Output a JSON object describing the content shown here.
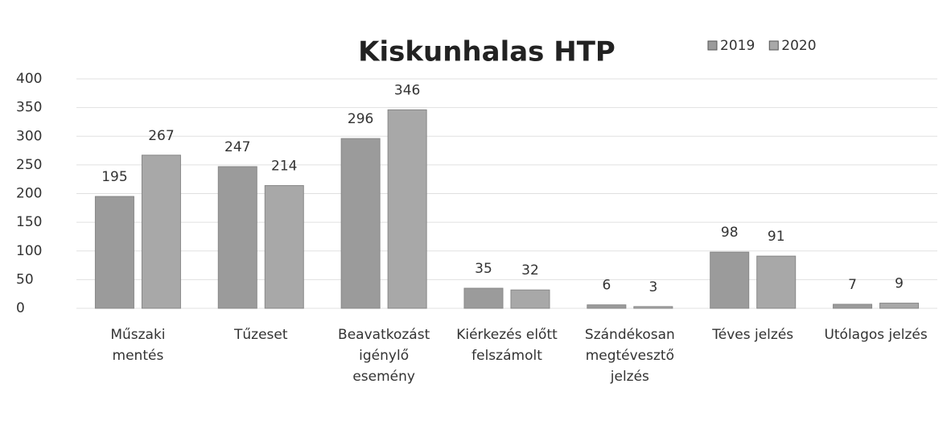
{
  "chart_data": {
    "type": "bar",
    "title": "Kiskunhalas HTP",
    "categories": [
      "Műszaki\nmentés",
      "Tűzeset",
      "Beavatkozást\nigénylő\nesemény",
      "Kiérkezés előtt\nfelszámolt",
      "Szándékosan\nmegtévesztő\njelzés",
      "Téves jelzés",
      "Utólagos jelzés"
    ],
    "series": [
      {
        "name": "2019",
        "color": "#9b9b9b",
        "values": [
          195,
          247,
          296,
          35,
          6,
          98,
          7
        ]
      },
      {
        "name": "2020",
        "color": "#a8a8a8",
        "values": [
          267,
          214,
          346,
          32,
          3,
          91,
          9
        ]
      }
    ],
    "ylim": [
      0,
      400
    ],
    "yticks": [
      0,
      50,
      100,
      150,
      200,
      250,
      300,
      350,
      400
    ],
    "grid": true,
    "legend": "top-right"
  }
}
